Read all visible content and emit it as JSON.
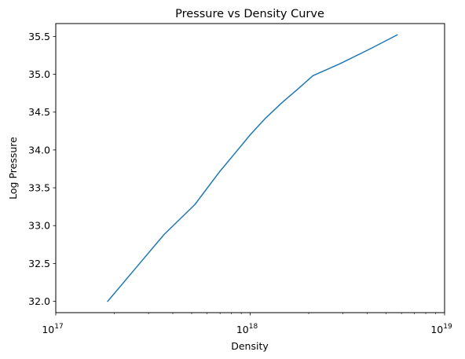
{
  "chart_data": {
    "type": "line",
    "title": "Pressure vs Density Curve",
    "xlabel": "Density",
    "ylabel": "Log Pressure",
    "xscale": "log",
    "xlim": [
      1e+17,
      1e+19
    ],
    "ylim": [
      31.85,
      35.67
    ],
    "grid": false,
    "x_ticks": [
      {
        "value": 1e+17,
        "base": "10",
        "exp": "17"
      },
      {
        "value": 1e+18,
        "base": "10",
        "exp": "18"
      },
      {
        "value": 1e+19,
        "base": "10",
        "exp": "19"
      }
    ],
    "y_ticks": [
      32.0,
      32.5,
      33.0,
      33.5,
      34.0,
      34.5,
      35.0,
      35.5
    ],
    "y_tick_labels": [
      "32.0",
      "32.5",
      "33.0",
      "33.5",
      "34.0",
      "34.5",
      "35.0",
      "35.5"
    ],
    "series": [
      {
        "color": "#1f77b4",
        "x": [
          1.85e+17,
          2.6e+17,
          3.6e+17,
          5.2e+17,
          7e+17,
          8.5e+17,
          1e+18,
          1.2e+18,
          1.45e+18,
          1.75e+18,
          2.1e+18,
          2.9e+18,
          4.1e+18,
          5.7e+18
        ],
        "y": [
          32.0,
          32.45,
          32.88,
          33.28,
          33.72,
          33.98,
          34.2,
          34.42,
          34.62,
          34.8,
          34.98,
          35.14,
          35.33,
          35.52
        ]
      }
    ]
  }
}
